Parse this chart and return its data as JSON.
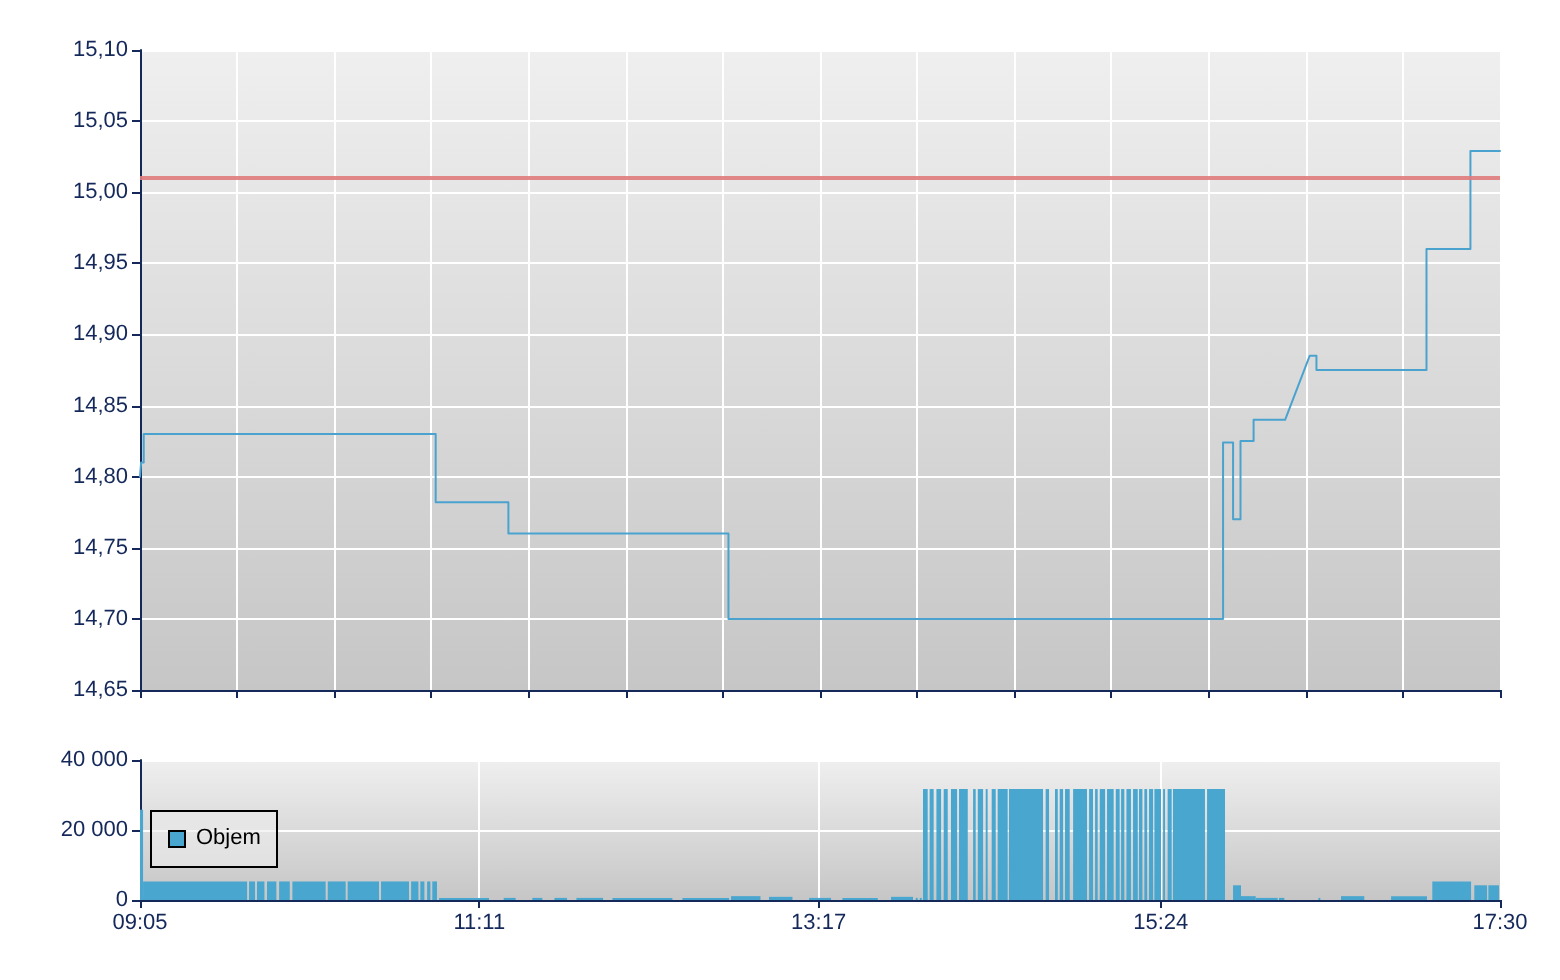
{
  "chart_data": [
    {
      "type": "line",
      "series": [
        {
          "color": "#4aa3cf",
          "x": [
            9.083,
            9.09,
            9.106,
            9.106,
            10.913,
            10.913,
            11.363,
            11.363,
            12.725,
            12.725,
            15.786,
            15.786,
            15.848,
            15.848,
            15.894,
            15.894,
            15.975,
            15.975,
            16.17,
            16.322,
            16.364,
            16.364,
            17.045,
            17.045,
            17.317,
            17.317,
            17.5
          ],
          "values": [
            14.8,
            14.81,
            14.81,
            14.83,
            14.83,
            14.782,
            14.782,
            14.76,
            14.76,
            14.7,
            14.7,
            14.824,
            14.824,
            14.77,
            14.77,
            14.825,
            14.825,
            14.84,
            14.84,
            14.885,
            14.885,
            14.875,
            14.875,
            14.96,
            14.96,
            15.029,
            15.029
          ]
        }
      ],
      "xlim": [
        9.083,
        17.5
      ],
      "xticks": [
        {
          "value": 9.083,
          "label": null
        },
        {
          "value": 9.685,
          "label": null
        },
        {
          "value": 10.286,
          "label": null
        },
        {
          "value": 10.887,
          "label": null
        },
        {
          "value": 11.488,
          "label": null
        },
        {
          "value": 12.089,
          "label": null
        },
        {
          "value": 12.69,
          "label": null
        },
        {
          "value": 13.292,
          "label": null
        },
        {
          "value": 13.893,
          "label": null
        },
        {
          "value": 14.494,
          "label": null
        },
        {
          "value": 15.095,
          "label": null
        },
        {
          "value": 15.696,
          "label": null
        },
        {
          "value": 16.298,
          "label": null
        },
        {
          "value": 16.899,
          "label": null
        },
        {
          "value": 17.5,
          "label": null
        }
      ],
      "ylim": [
        14.65,
        15.1
      ],
      "yticks": [
        {
          "value": 14.65,
          "label": "14,65"
        },
        {
          "value": 14.7,
          "label": "14,70"
        },
        {
          "value": 14.75,
          "label": "14,75"
        },
        {
          "value": 14.8,
          "label": "14,80"
        },
        {
          "value": 14.85,
          "label": "14,85"
        },
        {
          "value": 14.9,
          "label": "14,90"
        },
        {
          "value": 14.95,
          "label": "14,95"
        },
        {
          "value": 15.0,
          "label": "15,00"
        },
        {
          "value": 15.05,
          "label": "15,05"
        },
        {
          "value": 15.1,
          "label": "15,10"
        }
      ],
      "ref_lines": [
        {
          "axis": "y",
          "value": 15.012,
          "color": "#e07b7b"
        }
      ],
      "grid": true,
      "tick_labels": "y"
    },
    {
      "type": "histogram",
      "series": [
        {
          "name": "Objem",
          "color": "#48a6cf",
          "values": [
            25800,
            5300,
            null,
            5300,
            null,
            5300,
            null,
            5300,
            null,
            5300,
            null,
            5300,
            null,
            5300,
            null,
            5300,
            null,
            5300,
            null,
            5300,
            null,
            5300,
            null,
            5300,
            null,
            5300,
            null,
            600,
            null,
            600,
            null,
            600,
            null,
            600,
            null,
            600,
            null,
            600,
            null,
            600,
            null,
            1100,
            null,
            900,
            null,
            600,
            null,
            600,
            null,
            900,
            null,
            600,
            null,
            600,
            null,
            31700,
            null,
            31700,
            null,
            31700,
            null,
            31700,
            null,
            31700,
            null,
            31700,
            null,
            31700,
            null,
            31700,
            null,
            31700,
            null,
            31700,
            null,
            31700,
            null,
            31700,
            null,
            31700,
            null,
            31700,
            null,
            31700,
            null,
            31700,
            null,
            31700,
            null,
            31700,
            null,
            31700,
            null,
            31700,
            null,
            31700,
            null,
            31700,
            null,
            31700,
            null,
            31700,
            null,
            31700,
            null,
            31700,
            null,
            31700,
            null,
            31700,
            null,
            31700,
            null,
            31700,
            null,
            31700,
            null,
            31700,
            null,
            31700,
            null,
            4200,
            1100,
            600,
            null,
            600,
            null,
            600,
            null,
            1100,
            null,
            1100,
            null,
            5300,
            null,
            4200,
            null,
            4200
          ]
        }
      ],
      "bins": [
        9.083,
        9.102,
        9.746,
        9.758,
        9.795,
        9.807,
        9.853,
        9.869,
        9.927,
        9.944,
        10.01,
        10.026,
        10.232,
        10.245,
        10.356,
        10.368,
        10.562,
        10.575,
        10.748,
        10.761,
        10.806,
        10.818,
        10.843,
        10.86,
        10.88,
        10.892,
        10.921,
        10.934,
        11.243,
        11.334,
        11.408,
        11.511,
        11.573,
        11.648,
        11.726,
        11.784,
        11.949,
        12.007,
        12.378,
        12.44,
        12.729,
        12.741,
        12.923,
        12.976,
        13.121,
        13.224,
        13.36,
        13.43,
        13.649,
        13.731,
        13.867,
        13.884,
        13.896,
        13.909,
        13.921,
        13.929,
        13.958,
        13.97,
        13.995,
        14.012,
        14.041,
        14.057,
        14.082,
        14.102,
        14.14,
        14.152,
        14.206,
        14.239,
        14.255,
        14.268,
        14.301,
        14.317,
        14.329,
        14.354,
        14.379,
        14.391,
        14.453,
        14.461,
        14.672,
        14.688,
        14.709,
        14.746,
        14.763,
        14.775,
        14.796,
        14.808,
        14.837,
        14.858,
        14.944,
        14.957,
        14.981,
        14.994,
        15.01,
        15.023,
        15.056,
        15.068,
        15.109,
        15.122,
        15.146,
        15.155,
        15.175,
        15.188,
        15.216,
        15.229,
        15.258,
        15.266,
        15.287,
        15.299,
        15.316,
        15.328,
        15.353,
        15.361,
        15.402,
        15.415,
        15.427,
        15.443,
        15.468,
        15.476,
        15.674,
        15.687,
        15.798,
        15.848,
        15.897,
        15.988,
        16.124,
        16.132,
        16.165,
        16.376,
        16.388,
        16.516,
        16.66,
        16.826,
        17.048,
        17.081,
        17.321,
        17.341,
        17.42,
        17.428,
        17.494
      ],
      "xlim": [
        9.083,
        17.5
      ],
      "xticks": [
        {
          "value": 9.083,
          "label": "09:05"
        },
        {
          "value": 11.183,
          "label": "11:11"
        },
        {
          "value": 13.283,
          "label": "13:17"
        },
        {
          "value": 15.4,
          "label": "15:24"
        },
        {
          "value": 17.5,
          "label": "17:30"
        }
      ],
      "ylim": [
        0,
        40000
      ],
      "yticks": [
        0,
        {
          "value": 20000,
          "label": "20 000"
        },
        {
          "value": 40000,
          "label": "40 000"
        }
      ],
      "grid": true,
      "legend": "left"
    }
  ]
}
